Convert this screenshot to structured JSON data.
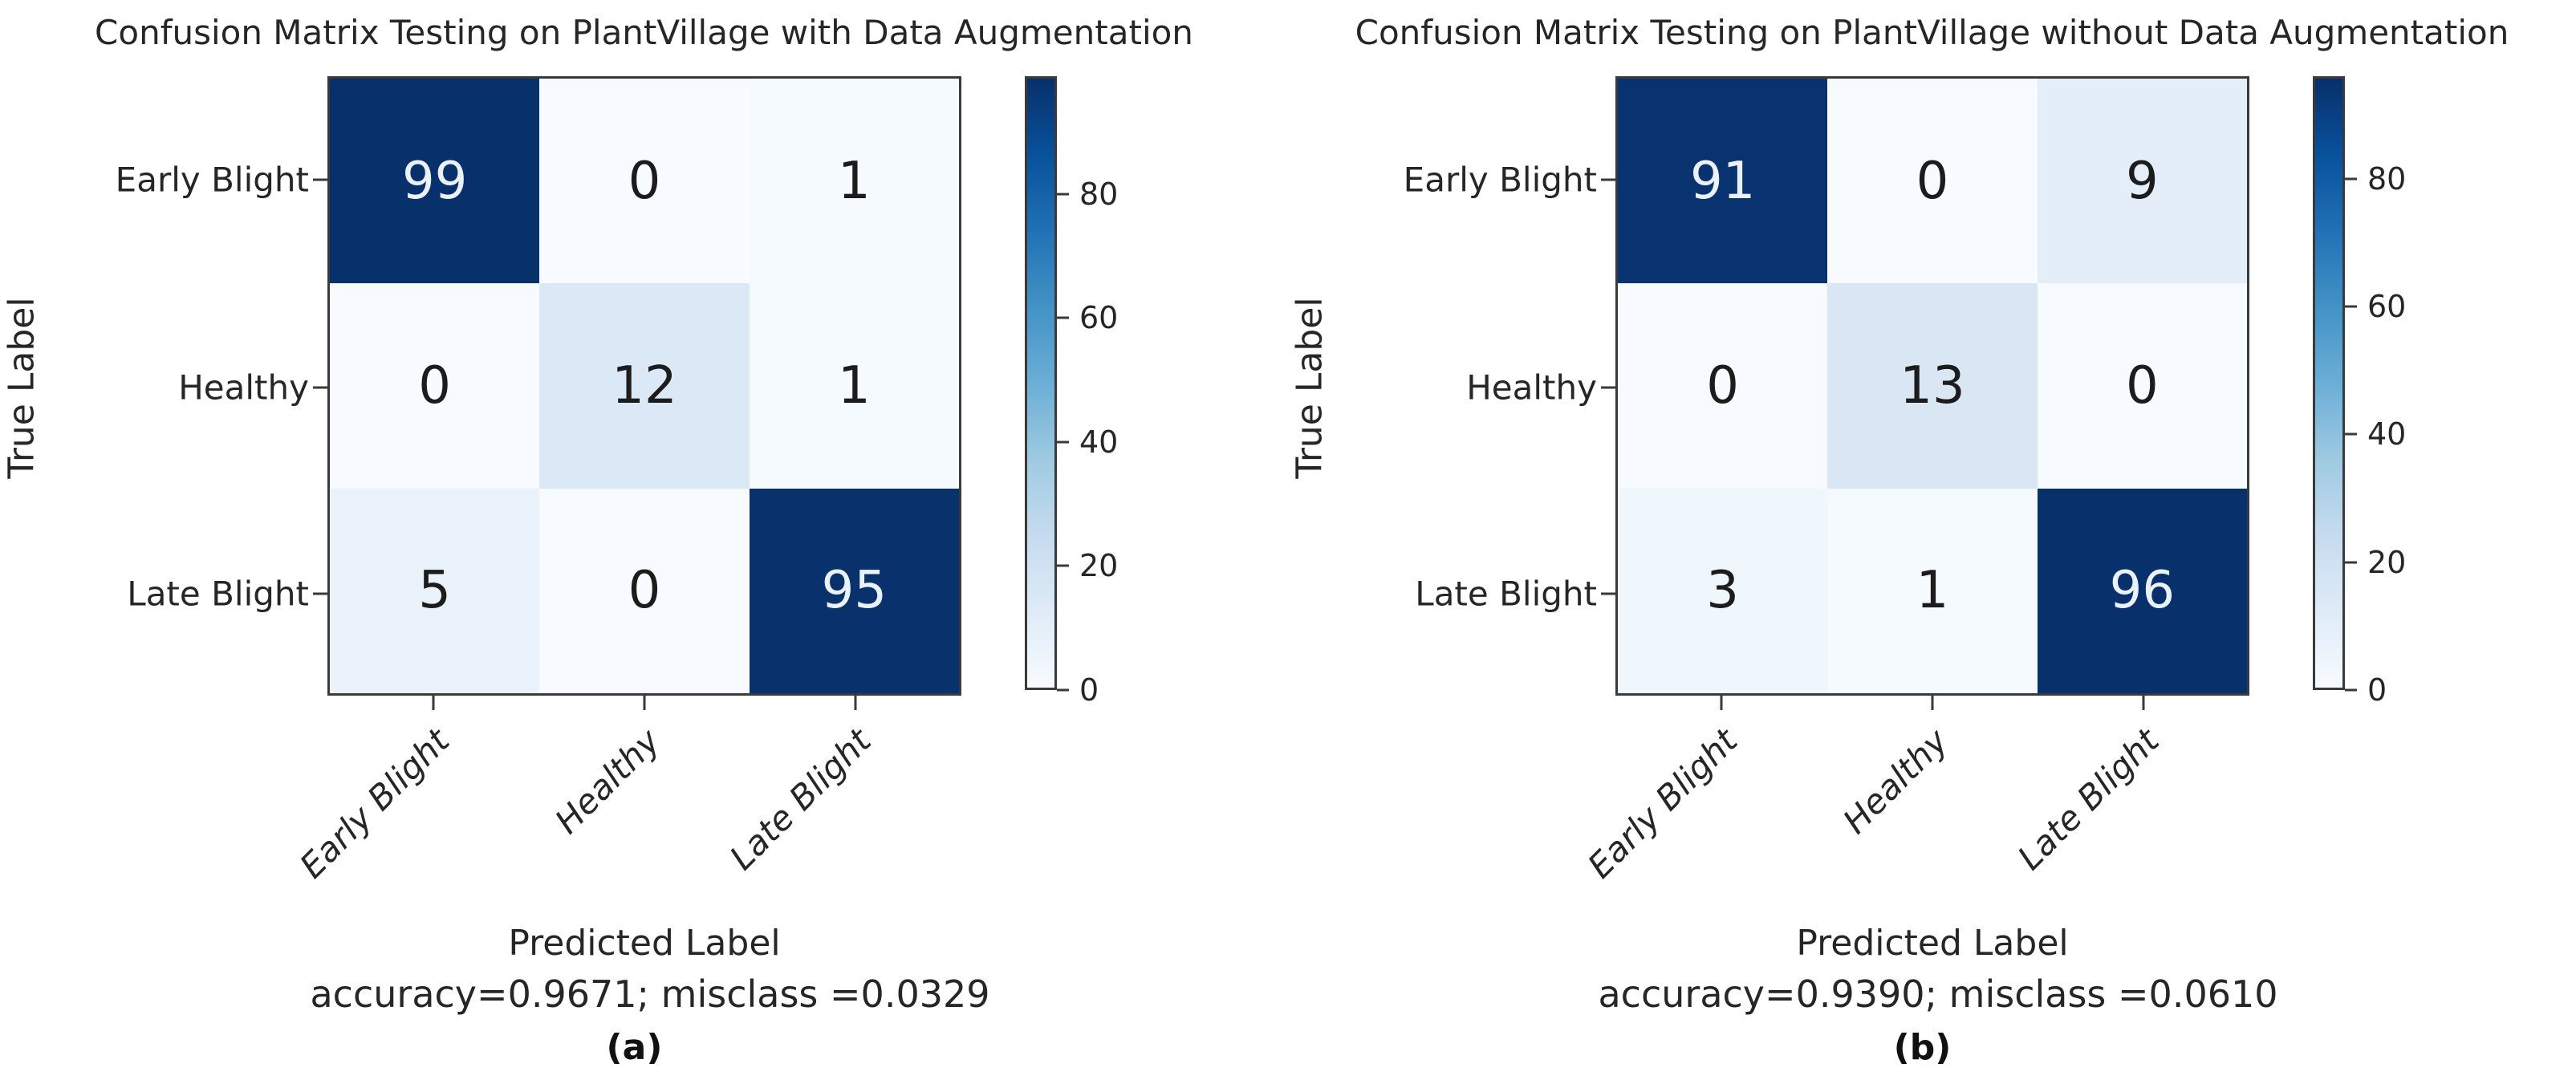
{
  "chart_data": [
    {
      "type": "heatmap",
      "panel_caption": "(a)",
      "title": "Confusion Matrix Testing on PlantVillage with Data Augmentation",
      "xlabel": "Predicted Label",
      "ylabel": "True Label",
      "stats_line": "accuracy=0.9671; misclass =0.0329",
      "categories_x": [
        "Early Blight",
        "Healthy",
        "Late Blight"
      ],
      "categories_y": [
        "Early Blight",
        "Healthy",
        "Late Blight"
      ],
      "matrix": [
        [
          99,
          0,
          1
        ],
        [
          0,
          12,
          1
        ],
        [
          5,
          0,
          95
        ]
      ],
      "colorbar": {
        "ticks": [
          0,
          20,
          40,
          60,
          80
        ],
        "vmin": 0,
        "vmax": 99,
        "colormap": "Blues"
      },
      "cell_colors": [
        [
          "#08306b",
          "#f7fbff",
          "#f5fafe"
        ],
        [
          "#f7fbff",
          "#dbe9f6",
          "#f5fafe"
        ],
        [
          "#eaf3fb",
          "#f7fbff",
          "#09316c"
        ]
      ],
      "colors": {
        "cmap_low": "#f7fbff",
        "cmap_high": "#08306b",
        "dark_cell_text": "#eaf1f8",
        "light_cell_text": "#1c1c1c"
      }
    },
    {
      "type": "heatmap",
      "panel_caption": "(b)",
      "title": "Confusion Matrix Testing on PlantVillage without Data Augmentation",
      "xlabel": "Predicted Label",
      "ylabel": "True Label",
      "stats_line": "accuracy=0.9390; misclass =0.0610",
      "categories_x": [
        "Early Blight",
        "Healthy",
        "Late Blight"
      ],
      "categories_y": [
        "Early Blight",
        "Healthy",
        "Late Blight"
      ],
      "matrix": [
        [
          91,
          0,
          9
        ],
        [
          0,
          13,
          0
        ],
        [
          3,
          1,
          96
        ]
      ],
      "colorbar": {
        "ticks": [
          0,
          20,
          40,
          60,
          80
        ],
        "vmin": 0,
        "vmax": 96,
        "colormap": "Blues"
      },
      "cell_colors": [
        [
          "#09336e",
          "#f7fbff",
          "#e3eef8"
        ],
        [
          "#f7fbff",
          "#d9e7f5",
          "#f7fbff"
        ],
        [
          "#eff6fc",
          "#f5fafe",
          "#08306b"
        ]
      ],
      "colors": {
        "cmap_low": "#f7fbff",
        "cmap_high": "#08306b",
        "dark_cell_text": "#eaf1f8",
        "light_cell_text": "#1c1c1c"
      }
    }
  ]
}
